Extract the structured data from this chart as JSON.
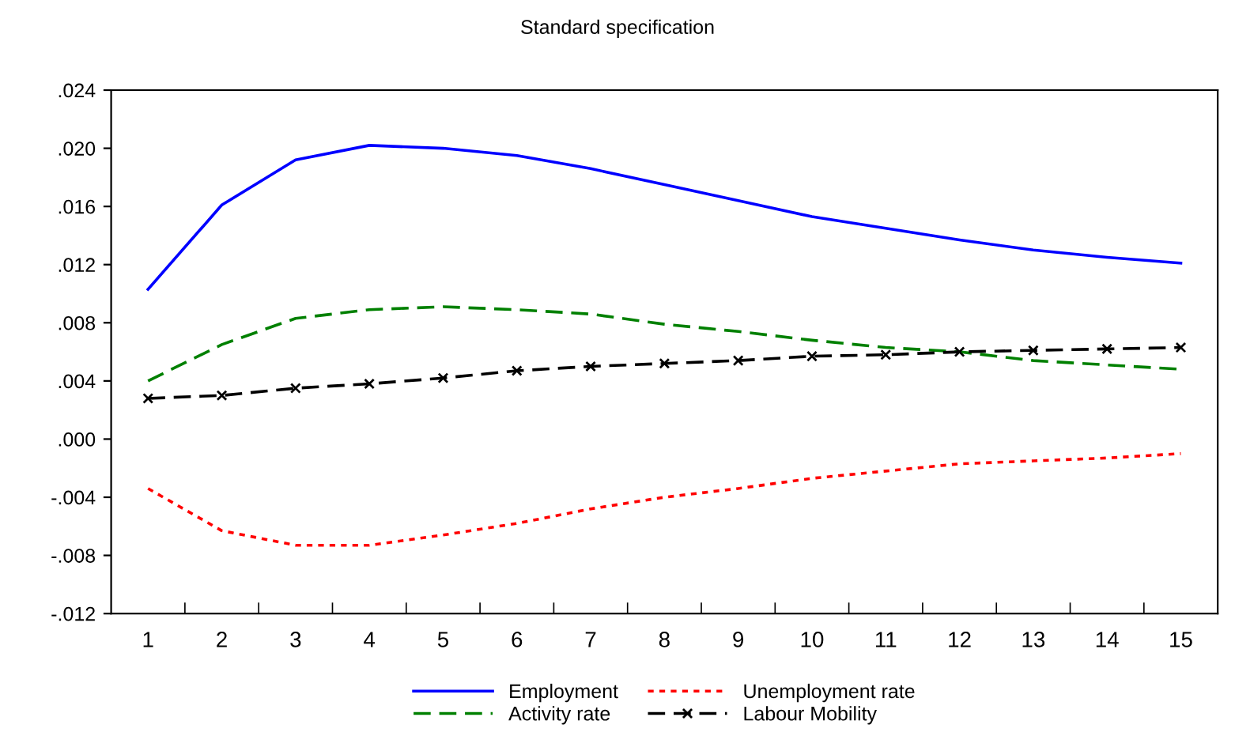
{
  "chart_data": {
    "type": "line",
    "title": "Standard specification",
    "categories": [
      "1",
      "2",
      "3",
      "4",
      "5",
      "6",
      "7",
      "8",
      "9",
      "10",
      "11",
      "12",
      "13",
      "14",
      "15"
    ],
    "series": [
      {
        "name": "Employment",
        "color": "#0000ff",
        "line_style": "solid",
        "values": [
          0.0103,
          0.0161,
          0.0192,
          0.0202,
          0.02,
          0.0195,
          0.0186,
          0.0175,
          0.0164,
          0.0153,
          0.0145,
          0.0137,
          0.013,
          0.0125,
          0.0121
        ]
      },
      {
        "name": "Activity rate",
        "color": "#008000",
        "line_style": "dashed",
        "values": [
          0.004,
          0.0065,
          0.0083,
          0.0089,
          0.0091,
          0.0089,
          0.0086,
          0.0079,
          0.0074,
          0.0068,
          0.0063,
          0.006,
          0.0054,
          0.0051,
          0.0048
        ]
      },
      {
        "name": "Unemployment rate",
        "color": "#ff0000",
        "line_style": "dotted",
        "values": [
          -0.0034,
          -0.0063,
          -0.0073,
          -0.0073,
          -0.0066,
          -0.0058,
          -0.0048,
          -0.004,
          -0.0034,
          -0.0027,
          -0.0022,
          -0.0017,
          -0.0015,
          -0.0013,
          -0.001
        ]
      },
      {
        "name": "Labour Mobility",
        "color": "#000000",
        "line_style": "dashed",
        "marker": "cross",
        "values": [
          0.0028,
          0.003,
          0.0035,
          0.0038,
          0.0042,
          0.0047,
          0.005,
          0.0052,
          0.0054,
          0.0057,
          0.0058,
          0.006,
          0.0061,
          0.0062,
          0.0063
        ]
      }
    ],
    "ylim": [
      -0.012,
      0.024
    ],
    "yticks": [
      {
        "value": -0.012,
        "label": "-.012"
      },
      {
        "value": -0.008,
        "label": "-.008"
      },
      {
        "value": -0.004,
        "label": "-.004"
      },
      {
        "value": 0,
        "label": ".000"
      },
      {
        "value": 0.004,
        "label": ".004"
      },
      {
        "value": 0.008,
        "label": ".008"
      },
      {
        "value": 0.012,
        "label": ".012"
      },
      {
        "value": 0.016,
        "label": ".016"
      },
      {
        "value": 0.02,
        "label": ".020"
      },
      {
        "value": 0.024,
        "label": ".024"
      }
    ],
    "grid": false,
    "legend": "bottom"
  }
}
